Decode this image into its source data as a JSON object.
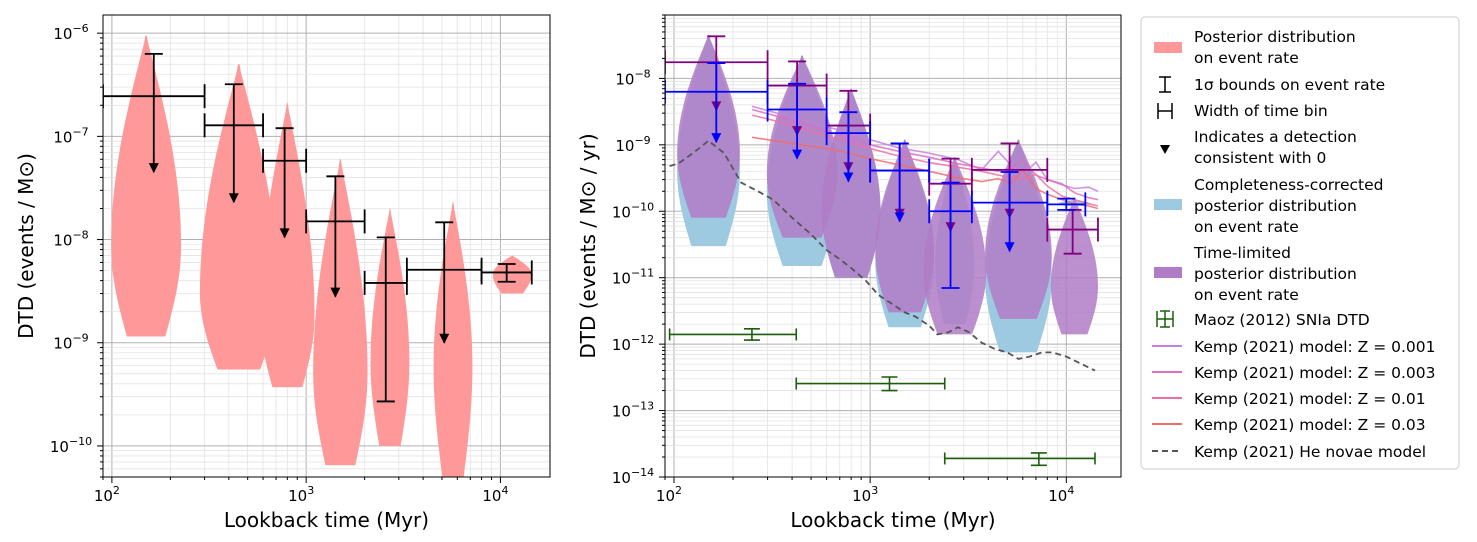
{
  "chart_data": [
    {
      "type": "violin-errorbar",
      "panel": "left",
      "xlabel": "Lookback time (Myr)",
      "ylabel": "DTD (events / M⊙)",
      "xscale": "log",
      "yscale": "log",
      "xlim": [
        90,
        18000
      ],
      "ylim": [
        5e-11,
        1.5e-06
      ],
      "xticks": [
        {
          "v": 100,
          "b": "10",
          "e": "2"
        },
        {
          "v": 1000,
          "b": "10",
          "e": "3"
        },
        {
          "v": 10000,
          "b": "10",
          "e": "4"
        }
      ],
      "yticks": [
        {
          "v": 1e-10,
          "b": "10",
          "e": "−10"
        },
        {
          "v": 1e-09,
          "b": "10",
          "e": "−9"
        },
        {
          "v": 1e-08,
          "b": "10",
          "e": "−8"
        },
        {
          "v": 1e-07,
          "b": "10",
          "e": "−7"
        },
        {
          "v": 1e-06,
          "b": "10",
          "e": "−6"
        }
      ],
      "violins": [
        {
          "x": 150,
          "lo": 1.15e-09,
          "hi": 9.5e-07,
          "maxw": 0.18,
          "peak": 0.3
        },
        {
          "x": 450,
          "lo": 5.5e-10,
          "hi": 5e-07,
          "maxw": 0.2,
          "peak": 0.25
        },
        {
          "x": 800,
          "lo": 3.7e-10,
          "hi": 2.1e-07,
          "maxw": 0.14,
          "peak": 0.25
        },
        {
          "x": 1500,
          "lo": 6.5e-11,
          "hi": 6e-08,
          "maxw": 0.14,
          "peak": 0.3
        },
        {
          "x": 2700,
          "lo": 1e-10,
          "hi": 2e-08,
          "maxw": 0.1,
          "peak": 0.35
        },
        {
          "x": 5700,
          "lo": 5e-11,
          "hi": 2.3e-08,
          "maxw": 0.1,
          "peak": 0.4
        },
        {
          "x": 11500,
          "lo": 3e-09,
          "hi": 7e-09,
          "maxw": 0.1,
          "peak": 0.5
        }
      ],
      "bins": [
        {
          "xlo": 90,
          "xhi": 300,
          "y": 2.45e-07,
          "up": 6.3e-07,
          "lo": 4.5e-08,
          "arrow": true
        },
        {
          "xlo": 300,
          "xhi": 600,
          "y": 1.28e-07,
          "up": 3.2e-07,
          "lo": 2.3e-08,
          "arrow": true
        },
        {
          "xlo": 600,
          "xhi": 1000,
          "y": 5.8e-08,
          "up": 1.2e-07,
          "lo": 1.05e-08,
          "arrow": true
        },
        {
          "xlo": 1000,
          "xhi": 2000,
          "y": 1.5e-08,
          "up": 4.1e-08,
          "lo": 2.8e-09,
          "arrow": true
        },
        {
          "xlo": 2000,
          "xhi": 3300,
          "y": 3.8e-09,
          "up": 1.05e-08,
          "lo": 2.7e-10,
          "arrow": false
        },
        {
          "xlo": 3300,
          "xhi": 8000,
          "y": 5.1e-09,
          "up": 1.47e-08,
          "lo": 1e-09,
          "arrow": true
        },
        {
          "xlo": 8000,
          "xhi": 14500,
          "y": 4.8e-09,
          "up": 5.8e-09,
          "lo": 3.9e-09,
          "arrow": false
        }
      ]
    },
    {
      "type": "violin-errorbar",
      "panel": "right",
      "xlabel": "Lookback time (Myr)",
      "ylabel": "DTD (events / M⊙ / yr)",
      "xscale": "log",
      "yscale": "log",
      "xlim": [
        90,
        19000
      ],
      "ylim": [
        1e-14,
        9e-08
      ],
      "xticks": [
        {
          "v": 100,
          "b": "10",
          "e": "2"
        },
        {
          "v": 1000,
          "b": "10",
          "e": "3"
        },
        {
          "v": 10000,
          "b": "10",
          "e": "4"
        }
      ],
      "yticks": [
        {
          "v": 1e-14,
          "b": "10",
          "e": "−14"
        },
        {
          "v": 1e-13,
          "b": "10",
          "e": "−13"
        },
        {
          "v": 1e-12,
          "b": "10",
          "e": "−12"
        },
        {
          "v": 1e-11,
          "b": "10",
          "e": "−11"
        },
        {
          "v": 1e-10,
          "b": "10",
          "e": "−10"
        },
        {
          "v": 1e-09,
          "b": "10",
          "e": "−9"
        },
        {
          "v": 1e-08,
          "b": "10",
          "e": "−8"
        }
      ],
      "blue_violins": [
        {
          "x": 150,
          "lo": 3e-11,
          "hi": 4.5e-08,
          "maxw": 0.16
        },
        {
          "x": 450,
          "lo": 1.5e-11,
          "hi": 2.2e-08,
          "maxw": 0.18
        },
        {
          "x": 800,
          "lo": 1e-11,
          "hi": 7e-09,
          "maxw": 0.15
        },
        {
          "x": 1500,
          "lo": 1.8e-12,
          "hi": 1.2e-09,
          "maxw": 0.15
        },
        {
          "x": 2700,
          "lo": 2e-12,
          "hi": 6.5e-10,
          "maxw": 0.1
        },
        {
          "x": 5700,
          "lo": 7.5e-13,
          "hi": 1.2e-09,
          "maxw": 0.17
        },
        {
          "x": 11000,
          "lo": 1.2e-10,
          "hi": 1.5e-10,
          "maxw": 0.08
        }
      ],
      "purple_violins": [
        {
          "x": 150,
          "lo": 8e-11,
          "hi": 4.5e-08,
          "maxw": 0.16
        },
        {
          "x": 450,
          "lo": 4e-11,
          "hi": 2.2e-08,
          "maxw": 0.18
        },
        {
          "x": 800,
          "lo": 1e-11,
          "hi": 7e-09,
          "maxw": 0.15
        },
        {
          "x": 1500,
          "lo": 3e-12,
          "hi": 1.2e-09,
          "maxw": 0.15
        },
        {
          "x": 2700,
          "lo": 1.4e-12,
          "hi": 6.5e-10,
          "maxw": 0.16
        },
        {
          "x": 5700,
          "lo": 2.4e-12,
          "hi": 1.2e-09,
          "maxw": 0.17
        },
        {
          "x": 11000,
          "lo": 1.4e-12,
          "hi": 1.6e-10,
          "maxw": 0.12
        }
      ],
      "blue_bins": [
        {
          "xlo": 90,
          "xhi": 300,
          "y": 6.3e-09,
          "up": 1.7e-08,
          "lo": 1.1e-09,
          "arrow": true
        },
        {
          "xlo": 300,
          "xhi": 600,
          "y": 3.4e-09,
          "up": 8.3e-09,
          "lo": 6.2e-10,
          "arrow": true
        },
        {
          "xlo": 600,
          "xhi": 1000,
          "y": 1.5e-09,
          "up": 3.1e-09,
          "lo": 2.8e-10,
          "arrow": true
        },
        {
          "xlo": 1000,
          "xhi": 2000,
          "y": 4.1e-10,
          "up": 1.05e-09,
          "lo": 7e-11,
          "arrow": true
        },
        {
          "xlo": 2000,
          "xhi": 3300,
          "y": 1e-10,
          "up": 2.7e-10,
          "lo": 7e-12,
          "arrow": false
        },
        {
          "xlo": 3300,
          "xhi": 8000,
          "y": 1.35e-10,
          "up": 3.9e-10,
          "lo": 2.5e-11,
          "arrow": true
        },
        {
          "xlo": 8000,
          "xhi": 12500,
          "y": 1.27e-10,
          "up": 1.55e-10,
          "lo": 1.05e-10,
          "arrow": false
        }
      ],
      "purple_bins": [
        {
          "xlo": 90,
          "xhi": 300,
          "y": 1.75e-08,
          "up": 4.3e-08,
          "lo": 3.3e-09,
          "arrow": true
        },
        {
          "xlo": 300,
          "xhi": 600,
          "y": 7.8e-09,
          "up": 1.8e-08,
          "lo": 1.4e-09,
          "arrow": true
        },
        {
          "xlo": 600,
          "xhi": 1000,
          "y": 1.95e-09,
          "up": 6.5e-09,
          "lo": 4e-10,
          "arrow": true
        },
        {
          "xlo": 1000,
          "xhi": 2000,
          "y": 4.1e-10,
          "up": 1.05e-09,
          "lo": 8e-11,
          "arrow": true
        },
        {
          "xlo": 2000,
          "xhi": 3300,
          "y": 2.6e-10,
          "up": 6.2e-10,
          "lo": 5e-11,
          "arrow": true
        },
        {
          "xlo": 3300,
          "xhi": 8000,
          "y": 4.2e-10,
          "up": 1.05e-09,
          "lo": 8e-11,
          "arrow": true
        },
        {
          "xlo": 8000,
          "xhi": 14500,
          "y": 5.3e-11,
          "up": 1.05e-10,
          "lo": 2.3e-11,
          "arrow": false
        }
      ],
      "maoz": [
        {
          "xlo": 95,
          "xhi": 420,
          "y": 1.4e-12,
          "up": 1.7e-12,
          "lo": 1.15e-12
        },
        {
          "xlo": 420,
          "xhi": 2400,
          "y": 2.55e-13,
          "up": 3.2e-13,
          "lo": 2e-13
        },
        {
          "xlo": 2400,
          "xhi": 14000,
          "y": 1.9e-14,
          "up": 2.3e-14,
          "lo": 1.5e-14
        }
      ],
      "series": [
        {
          "name": "Kemp (2021) model: Z = 0.001",
          "color": "#c77fdf",
          "x": [
            250,
            350,
            500,
            700,
            1000,
            1400,
            2000,
            2800,
            3700,
            4500,
            5200,
            6000,
            7000,
            8000,
            9500,
            11000,
            13000,
            14500
          ],
          "y": [
            3.8e-09,
            2.9e-09,
            2.2e-09,
            1.65e-09,
            1.2e-09,
            9e-10,
            7.5e-10,
            6e-10,
            4.2e-10,
            8e-10,
            5e-10,
            3.5e-10,
            5.5e-10,
            3e-10,
            2.5e-10,
            2.2e-10,
            2.3e-10,
            2e-10
          ]
        },
        {
          "name": "Kemp (2021) model: Z = 0.003",
          "color": "#dc6fc4",
          "x": [
            250,
            350,
            500,
            700,
            1000,
            1400,
            2000,
            2800,
            3700,
            4500,
            5200,
            6000,
            7000,
            8000,
            9500,
            11000,
            13000,
            14500
          ],
          "y": [
            3.4e-09,
            2.6e-09,
            1.9e-09,
            1.4e-09,
            1e-09,
            8e-10,
            6.5e-10,
            5.2e-10,
            4.5e-10,
            4e-10,
            4.5e-10,
            6e-10,
            3.5e-10,
            3e-10,
            2.6e-10,
            1.9e-10,
            1.6e-10,
            1.5e-10
          ]
        },
        {
          "name": "Kemp (2021) model: Z = 0.01",
          "color": "#ee6fa3",
          "x": [
            250,
            350,
            500,
            700,
            1000,
            1400,
            2000,
            2800,
            3700,
            4500,
            5200,
            6000,
            7000,
            8000,
            9500,
            11000,
            13000,
            14500
          ],
          "y": [
            2.8e-09,
            2.2e-09,
            1.6e-09,
            1.2e-09,
            8.8e-10,
            6.8e-10,
            5.4e-10,
            4.6e-10,
            4e-10,
            3.5e-10,
            3.2e-10,
            3e-10,
            3.6e-10,
            2.4e-10,
            1.7e-10,
            1.5e-10,
            1.3e-10,
            1.2e-10
          ]
        },
        {
          "name": "Kemp (2021) model: Z = 0.03",
          "color": "#f26b6b",
          "x": [
            250,
            400,
            600,
            800,
            1000,
            1400,
            2000,
            2800,
            3700,
            4500,
            5200,
            6000,
            7000,
            8000,
            9500,
            11000,
            13000,
            14500
          ],
          "y": [
            1.3e-09,
            1.05e-09,
            8.8e-10,
            7.4e-10,
            6.2e-10,
            5e-10,
            4e-10,
            3.2e-10,
            2.8e-10,
            3.1e-10,
            2.6e-10,
            4.2e-10,
            2.2e-10,
            1.8e-10,
            1.5e-10,
            1.3e-10,
            1.2e-10,
            1.1e-10
          ]
        },
        {
          "name": "Kemp (2021) He novae model",
          "color": "#555555",
          "dash": true,
          "x": [
            95,
            105,
            125,
            150,
            180,
            220,
            260,
            320,
            400,
            500,
            600,
            700,
            800,
            950,
            1100,
            1300,
            1500,
            1700,
            2000,
            2200,
            2500,
            2800,
            3200,
            3700,
            4300,
            5000,
            5700,
            6500,
            7500,
            8500,
            10000,
            12000,
            14000
          ],
          "y": [
            4.8e-10,
            5.2e-10,
            7.5e-10,
            1.15e-09,
            7.5e-10,
            2.7e-10,
            2.1e-10,
            1.5e-10,
            8e-11,
            4.5e-11,
            2.6e-11,
            1.9e-11,
            1.4e-11,
            9e-12,
            5.5e-12,
            4e-12,
            3e-12,
            2.6e-12,
            1.9e-12,
            1.4e-12,
            1.5e-12,
            1.8e-12,
            1.5e-12,
            1.05e-12,
            8.5e-13,
            7.5e-13,
            6e-13,
            6.5e-13,
            7.5e-13,
            7.5e-13,
            6.5e-13,
            5e-13,
            4e-13
          ]
        }
      ]
    }
  ],
  "legend": {
    "posterior": [
      "Posterior distribution",
      "on event rate"
    ],
    "one_sigma": "1σ bounds on event rate",
    "width": "Width of time bin",
    "detection": [
      "Indicates a detection",
      "consistent with 0"
    ],
    "completeness": [
      "Completeness-corrected",
      "posterior distribution",
      "on event rate"
    ],
    "timelimited": [
      "Time-limited",
      "posterior distribution",
      "on event rate"
    ],
    "maoz": "Maoz (2012) SNIa DTD",
    "k001": "Kemp (2021) model: Z = 0.001",
    "k003": "Kemp (2021) model: Z = 0.003",
    "k01": "Kemp (2021) model: Z = 0.01",
    "k03": "Kemp (2021) model: Z = 0.03",
    "he": "Kemp (2021) He novae model"
  },
  "colors": {
    "posterior": "#ff9999",
    "completeness": "#9ecae1",
    "timelimited": "#b07cc6",
    "blue": "#0000ff",
    "purple": "#800080",
    "maoz": "#1a5e0a",
    "black": "#000000"
  }
}
